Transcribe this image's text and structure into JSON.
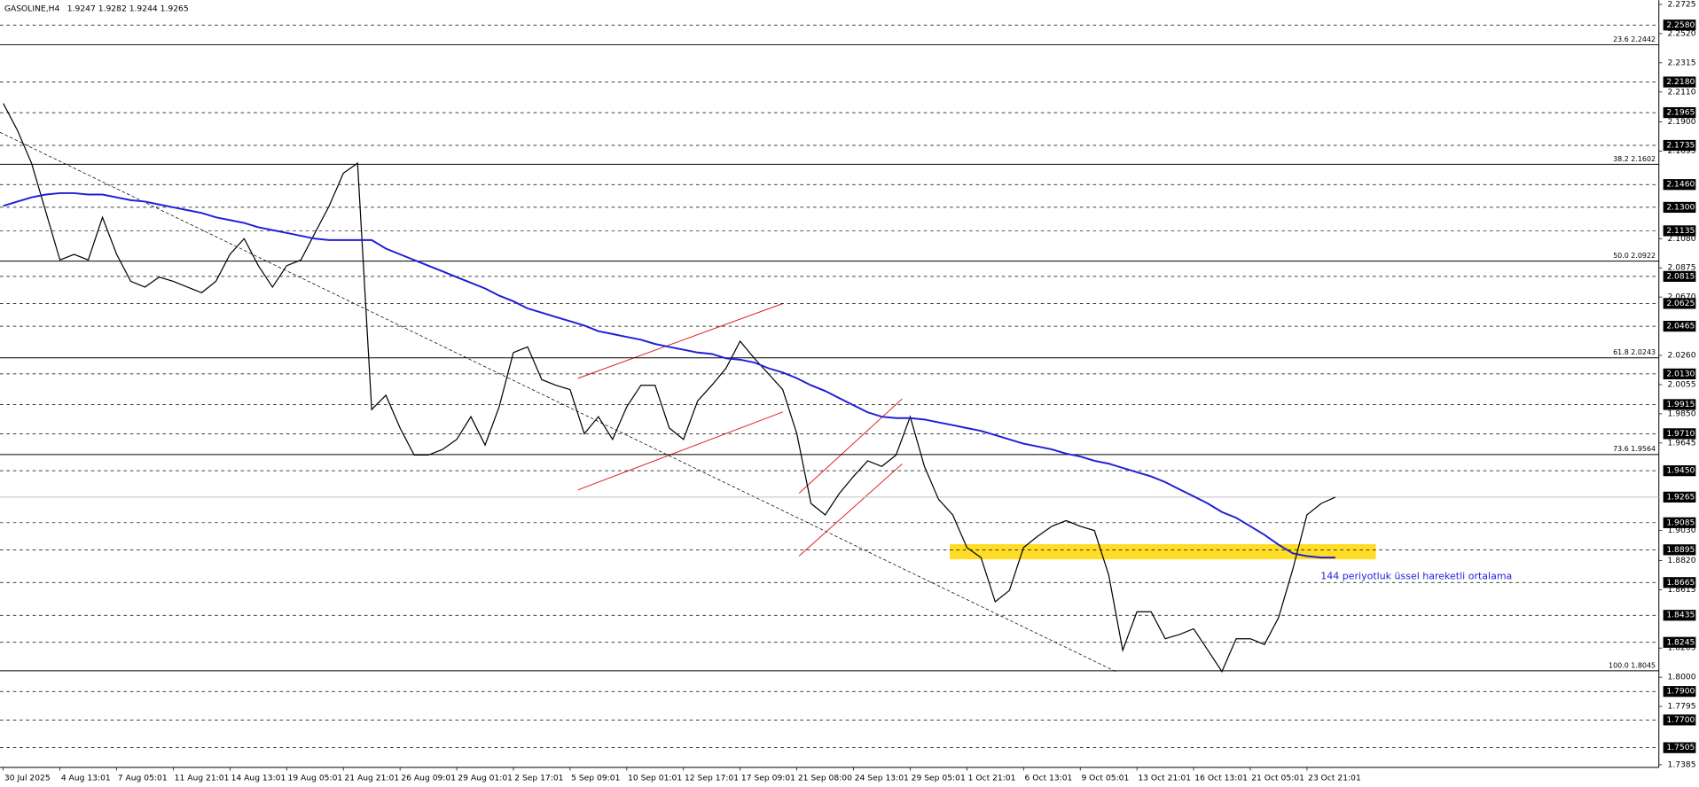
{
  "chart_data": {
    "type": "line",
    "title": "GASOLINE,H4",
    "ohlc_text": "1.9247 1.9282 1.9244 1.9265",
    "annotation": "144 periyotluk üssel hareketli ortalama",
    "categories": [
      "30 Jul 2025",
      null,
      null,
      null,
      "4 Aug 13:01",
      null,
      null,
      null,
      "7 Aug 05:01",
      null,
      null,
      null,
      "11 Aug 21:01",
      null,
      null,
      null,
      "14 Aug 13:01",
      null,
      null,
      null,
      "19 Aug 05:01",
      null,
      null,
      null,
      "21 Aug 21:01",
      null,
      null,
      null,
      "26 Aug 09:01",
      null,
      null,
      null,
      "29 Aug 01:01",
      null,
      null,
      null,
      "2 Sep 17:01",
      null,
      null,
      null,
      "5 Sep 09:01",
      null,
      null,
      null,
      "10 Sep 01:01",
      null,
      null,
      null,
      "12 Sep 17:01",
      null,
      null,
      null,
      "17 Sep 09:01",
      null,
      null,
      null,
      "21 Sep 08:00",
      null,
      null,
      null,
      "24 Sep 13:01",
      null,
      null,
      null,
      "29 Sep 05:01",
      null,
      null,
      null,
      "1 Oct 21:01",
      null,
      null,
      null,
      "6 Oct 13:01",
      null,
      null,
      null,
      "9 Oct 05:01",
      null,
      null,
      null,
      "13 Oct 21:01",
      null,
      null,
      null,
      "16 Oct 13:01",
      null,
      null,
      null,
      "21 Oct 05:01",
      null,
      null,
      null,
      "23 Oct 21:01",
      null,
      null
    ],
    "series": [
      {
        "color": "#000000",
        "values": [
          2.203,
          2.184,
          2.161,
          2.127,
          2.093,
          2.097,
          2.093,
          2.123,
          2.097,
          2.078,
          2.074,
          2.081,
          2.078,
          2.074,
          2.07,
          2.078,
          2.097,
          2.108,
          2.089,
          2.074,
          2.089,
          2.093,
          2.112,
          2.131,
          2.154,
          2.161,
          1.988,
          1.998,
          1.975,
          1.956,
          1.956,
          1.96,
          1.967,
          1.983,
          1.963,
          1.99,
          2.028,
          2.032,
          2.009,
          2.005,
          2.002,
          1.971,
          1.983,
          1.967,
          1.99,
          2.005,
          2.005,
          1.975,
          1.967,
          1.994,
          2.005,
          2.017,
          2.036,
          2.024,
          2.013,
          2.002,
          1.971,
          1.922,
          1.914,
          1.929,
          1.941,
          1.952,
          1.948,
          1.956,
          1.983,
          1.948,
          1.925,
          1.914,
          1.891,
          1.884,
          1.853,
          1.861,
          1.891,
          1.899,
          1.906,
          1.91,
          1.906,
          1.903,
          1.872,
          1.819,
          1.846,
          1.846,
          1.827,
          1.83,
          1.834,
          1.819,
          1.804,
          1.827,
          1.827,
          1.823,
          1.842,
          1.876,
          1.914,
          1.922,
          1.9265
        ]
      },
      {
        "color": "#1f1fd6",
        "values": [
          2.131,
          2.134,
          2.137,
          2.139,
          2.14,
          2.14,
          2.139,
          2.139,
          2.137,
          2.135,
          2.134,
          2.132,
          2.13,
          2.128,
          2.126,
          2.123,
          2.121,
          2.119,
          2.116,
          2.114,
          2.112,
          2.11,
          2.108,
          2.107,
          2.107,
          2.107,
          2.107,
          2.101,
          2.097,
          2.093,
          2.089,
          2.085,
          2.081,
          2.077,
          2.073,
          2.068,
          2.064,
          2.059,
          2.056,
          2.053,
          2.05,
          2.047,
          2.043,
          2.041,
          2.039,
          2.037,
          2.034,
          2.032,
          2.03,
          2.028,
          2.027,
          2.024,
          2.023,
          2.021,
          2.017,
          2.014,
          2.01,
          2.005,
          2.001,
          1.996,
          1.991,
          1.986,
          1.983,
          1.982,
          1.982,
          1.981,
          1.979,
          1.977,
          1.975,
          1.973,
          1.97,
          1.967,
          1.964,
          1.962,
          1.96,
          1.957,
          1.955,
          1.952,
          1.95,
          1.947,
          1.944,
          1.941,
          1.937,
          1.932,
          1.927,
          1.922,
          1.916,
          1.912,
          1.906,
          1.9,
          1.893,
          1.887,
          1.885,
          1.884,
          1.884
        ]
      }
    ],
    "ylim": [
      1.7367,
      2.2755
    ],
    "yticks": [
      2.2725,
      {
        "value": 2.252,
        "label": "2.2520"
      },
      2.2315,
      {
        "value": 2.211,
        "label": "2.2110"
      },
      {
        "value": 2.19,
        "label": "2.1900"
      },
      2.1695,
      {
        "value": 2.108,
        "label": "2.1080"
      },
      2.0875,
      {
        "value": 2.067,
        "label": "2.0670"
      },
      {
        "value": 2.026,
        "label": "2.0260"
      },
      2.0055,
      {
        "value": 1.985,
        "label": "1.9850"
      },
      1.9645,
      {
        "value": 1.903,
        "label": "1.9030"
      },
      {
        "value": 1.882,
        "label": "1.8820"
      },
      1.8615,
      1.8205,
      {
        "value": 1.8,
        "label": "1.8000"
      },
      1.7795,
      1.7385
    ],
    "levels": [
      {
        "value": 2.258,
        "label": "2.2580"
      },
      {
        "value": 2.218,
        "label": "2.2180"
      },
      2.1965,
      2.1735,
      {
        "value": 2.146,
        "label": "2.1460"
      },
      {
        "value": 2.13,
        "label": "2.1300"
      },
      2.1135,
      2.0815,
      2.0625,
      2.0465,
      {
        "value": 2.013,
        "label": "2.0130"
      },
      1.9915,
      {
        "value": 1.971,
        "label": "1.9710"
      },
      {
        "value": 1.945,
        "label": "1.9450"
      },
      1.9085,
      1.8895,
      1.8665,
      1.8435,
      1.8245,
      {
        "value": 1.79,
        "label": "1.7900"
      },
      {
        "value": 1.77,
        "label": "1.7700"
      },
      1.7505
    ],
    "current_price": 1.9265,
    "fib_levels": [
      {
        "value": 2.2442,
        "label": "23.6 2.2442"
      },
      {
        "value": 2.1602,
        "label": "38.2 2.1602"
      },
      {
        "value": 2.0922,
        "label": "50.0 2.0922"
      },
      {
        "value": 2.0243,
        "label": "61.8 2.0243"
      },
      {
        "value": 1.9564,
        "label": "73.6 1.9564"
      },
      {
        "value": 1.8045,
        "label": "100.0 1.8045"
      }
    ]
  }
}
